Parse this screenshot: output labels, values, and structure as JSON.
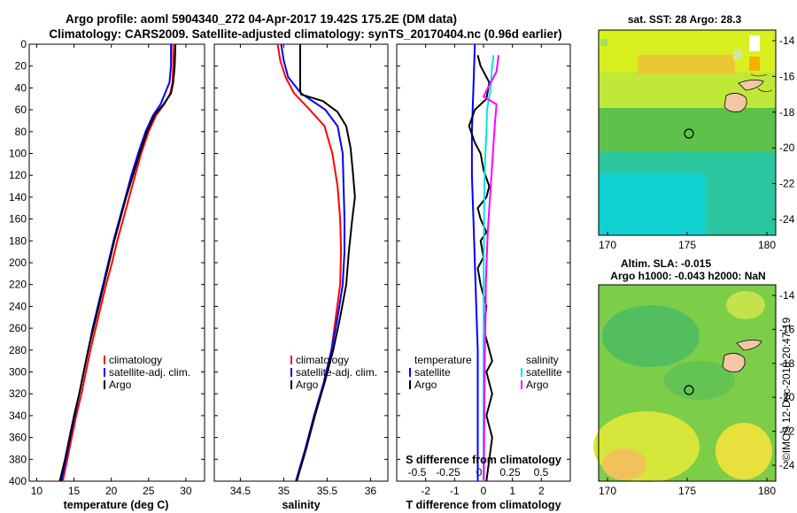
{
  "titles": {
    "line1": "Argo profile: aoml 5904340_272 04-Apr-2017 19.42S 175.2E (DM data)",
    "line2": "Climatology: CARS2009. Satellite-adjusted climatology: synTS_20170404.nc (0.96d earlier)"
  },
  "colors": {
    "climatology": "#ff0000",
    "satellite": "#0000ff",
    "argo": "#000000",
    "sat_s": "#00e5e5",
    "argo_s": "#ff00ff"
  },
  "depth_axis": {
    "ticks": [
      "0",
      "20",
      "40",
      "60",
      "80",
      "100",
      "120",
      "140",
      "160",
      "180",
      "200",
      "220",
      "240",
      "260",
      "280",
      "300",
      "320",
      "340",
      "360",
      "380",
      "400"
    ]
  },
  "chart_data": [
    {
      "type": "line",
      "title": "",
      "xlabel": "temperature (deg C)",
      "ylabel": "",
      "xlim": [
        9,
        32.5
      ],
      "ylim": [
        400,
        0
      ],
      "xticks": [
        "10",
        "15",
        "20",
        "25",
        "30"
      ],
      "legend": [
        "climatology",
        "satellite-adj. clim.",
        "Argo"
      ],
      "series": [
        {
          "name": "climatology",
          "color": "#ff0000",
          "points": [
            [
              28.3,
              0
            ],
            [
              28.3,
              20
            ],
            [
              28.2,
              35
            ],
            [
              27.9,
              45
            ],
            [
              27.1,
              55
            ],
            [
              26.0,
              65
            ],
            [
              25.0,
              80
            ],
            [
              24.0,
              100
            ],
            [
              23.2,
              120
            ],
            [
              22.4,
              140
            ],
            [
              21.6,
              160
            ],
            [
              20.8,
              180
            ],
            [
              20.1,
              200
            ],
            [
              19.3,
              220
            ],
            [
              18.6,
              240
            ],
            [
              17.9,
              260
            ],
            [
              17.2,
              280
            ],
            [
              16.6,
              300
            ],
            [
              16.0,
              320
            ],
            [
              15.3,
              340
            ],
            [
              14.7,
              360
            ],
            [
              14.1,
              380
            ],
            [
              13.5,
              400
            ]
          ]
        },
        {
          "name": "satellite-adj. clim.",
          "color": "#0000ff",
          "points": [
            [
              28.0,
              0
            ],
            [
              28.0,
              20
            ],
            [
              27.8,
              35
            ],
            [
              27.2,
              45
            ],
            [
              26.6,
              55
            ],
            [
              25.6,
              65
            ],
            [
              24.6,
              80
            ],
            [
              23.6,
              100
            ],
            [
              22.7,
              120
            ],
            [
              21.9,
              140
            ],
            [
              21.1,
              160
            ],
            [
              20.3,
              180
            ],
            [
              19.6,
              200
            ],
            [
              18.9,
              220
            ],
            [
              18.2,
              240
            ],
            [
              17.5,
              260
            ],
            [
              16.9,
              280
            ],
            [
              16.3,
              300
            ],
            [
              15.7,
              320
            ],
            [
              15.1,
              340
            ],
            [
              14.5,
              360
            ],
            [
              13.9,
              380
            ],
            [
              13.3,
              400
            ]
          ]
        },
        {
          "name": "Argo",
          "color": "#000000",
          "points": [
            [
              28.6,
              0
            ],
            [
              28.5,
              20
            ],
            [
              28.3,
              35
            ],
            [
              28.0,
              45
            ],
            [
              27.0,
              55
            ],
            [
              25.8,
              65
            ],
            [
              24.8,
              80
            ],
            [
              23.8,
              100
            ],
            [
              22.9,
              120
            ],
            [
              22.0,
              140
            ],
            [
              21.2,
              160
            ],
            [
              20.4,
              180
            ],
            [
              19.7,
              200
            ],
            [
              19.0,
              220
            ],
            [
              18.3,
              240
            ],
            [
              17.6,
              260
            ],
            [
              16.9,
              280
            ],
            [
              16.3,
              300
            ],
            [
              15.7,
              320
            ],
            [
              15.0,
              340
            ],
            [
              14.4,
              360
            ],
            [
              13.8,
              380
            ],
            [
              13.1,
              400
            ]
          ]
        }
      ]
    },
    {
      "type": "line",
      "title": "",
      "xlabel": "salinity",
      "ylabel": "",
      "xlim": [
        34.2,
        36.2
      ],
      "ylim": [
        400,
        0
      ],
      "xticks": [
        "34.5",
        "35",
        "35.5",
        "36"
      ],
      "legend": [
        "climatology",
        "satellite-adj. clim.",
        "Argo"
      ],
      "series": [
        {
          "name": "climatology",
          "color": "#ff0000",
          "points": [
            [
              34.93,
              0
            ],
            [
              34.96,
              15
            ],
            [
              35.02,
              30
            ],
            [
              35.12,
              45
            ],
            [
              35.3,
              60
            ],
            [
              35.47,
              75
            ],
            [
              35.56,
              100
            ],
            [
              35.62,
              130
            ],
            [
              35.65,
              160
            ],
            [
              35.66,
              190
            ],
            [
              35.65,
              220
            ],
            [
              35.6,
              250
            ],
            [
              35.55,
              280
            ],
            [
              35.46,
              310
            ],
            [
              35.35,
              340
            ],
            [
              35.25,
              370
            ],
            [
              35.15,
              400
            ]
          ]
        },
        {
          "name": "satellite-adj. clim.",
          "color": "#0000ff",
          "points": [
            [
              34.97,
              0
            ],
            [
              35.0,
              15
            ],
            [
              35.05,
              30
            ],
            [
              35.2,
              45
            ],
            [
              35.48,
              60
            ],
            [
              35.62,
              75
            ],
            [
              35.68,
              100
            ],
            [
              35.69,
              130
            ],
            [
              35.7,
              160
            ],
            [
              35.7,
              190
            ],
            [
              35.68,
              220
            ],
            [
              35.62,
              250
            ],
            [
              35.55,
              280
            ],
            [
              35.46,
              310
            ],
            [
              35.35,
              340
            ],
            [
              35.25,
              370
            ],
            [
              35.14,
              400
            ]
          ]
        },
        {
          "name": "Argo",
          "color": "#000000",
          "points": [
            [
              35.19,
              0
            ],
            [
              35.19,
              30
            ],
            [
              35.19,
              42
            ],
            [
              35.2,
              46
            ],
            [
              35.45,
              52
            ],
            [
              35.62,
              62
            ],
            [
              35.72,
              75
            ],
            [
              35.77,
              95
            ],
            [
              35.8,
              120
            ],
            [
              35.82,
              140
            ],
            [
              35.79,
              160
            ],
            [
              35.75,
              190
            ],
            [
              35.72,
              220
            ],
            [
              35.65,
              250
            ],
            [
              35.57,
              280
            ],
            [
              35.47,
              310
            ],
            [
              35.36,
              340
            ],
            [
              35.26,
              370
            ],
            [
              35.15,
              400
            ]
          ]
        }
      ]
    },
    {
      "type": "line",
      "title": "",
      "xlabel": "T difference from climatology",
      "xlabel2": "S difference from climatology",
      "ylabel": "",
      "xlim": [
        -3,
        3
      ],
      "ylim": [
        400,
        0
      ],
      "xticks": [
        "-2",
        "-1",
        "0",
        "1",
        "2"
      ],
      "xticks2": [
        "-0.5",
        "-0.25",
        "0",
        "0.25",
        "0.5"
      ],
      "legend_left_title": "temperature",
      "legend_right_title": "salinity",
      "legend_left": [
        "satellite",
        "Argo"
      ],
      "legend_right": [
        "satellite",
        "Argo"
      ],
      "series": [
        {
          "name": "temperature satellite",
          "color": "#0000ff",
          "points": [
            [
              -0.3,
              0
            ],
            [
              -0.35,
              40
            ],
            [
              -0.4,
              80
            ],
            [
              -0.4,
              120
            ],
            [
              -0.35,
              160
            ],
            [
              -0.3,
              200
            ],
            [
              -0.25,
              240
            ],
            [
              -0.2,
              280
            ],
            [
              -0.2,
              320
            ],
            [
              -0.2,
              360
            ],
            [
              -0.2,
              400
            ]
          ]
        },
        {
          "name": "temperature Argo",
          "color": "#000000",
          "points": [
            [
              -0.2,
              10
            ],
            [
              -0.1,
              20
            ],
            [
              0.2,
              35
            ],
            [
              0.1,
              50
            ],
            [
              -0.3,
              60
            ],
            [
              -0.5,
              75
            ],
            [
              -0.3,
              90
            ],
            [
              -0.1,
              100
            ],
            [
              0.0,
              115
            ],
            [
              0.2,
              130
            ],
            [
              0.1,
              140
            ],
            [
              -0.2,
              150
            ],
            [
              -0.1,
              160
            ],
            [
              0.1,
              172
            ],
            [
              -0.1,
              180
            ],
            [
              0.0,
              195
            ],
            [
              -0.2,
              205
            ],
            [
              -0.1,
              220
            ],
            [
              0.1,
              240
            ],
            [
              0.0,
              260
            ],
            [
              0.2,
              280
            ],
            [
              0.3,
              290
            ],
            [
              0.1,
              300
            ],
            [
              0.2,
              310
            ],
            [
              0.3,
              320
            ],
            [
              0.1,
              340
            ],
            [
              0.3,
              360
            ],
            [
              0.2,
              380
            ],
            [
              0.1,
              400
            ]
          ]
        },
        {
          "name": "salinity satellite",
          "color": "#00e5e5",
          "points": [
            [
              0.35,
              10
            ],
            [
              0.28,
              25
            ],
            [
              0.25,
              40
            ],
            [
              0.12,
              60
            ],
            [
              0.1,
              80
            ],
            [
              0.05,
              110
            ],
            [
              0.02,
              150
            ],
            [
              0.01,
              200
            ],
            [
              0.0,
              250
            ],
            [
              0.0,
              300
            ],
            [
              0.0,
              350
            ],
            [
              0.0,
              400
            ]
          ]
        },
        {
          "name": "salinity Argo",
          "color": "#ff00ff",
          "points": [
            [
              0.52,
              10
            ],
            [
              0.45,
              25
            ],
            [
              0.15,
              40
            ],
            [
              0.0,
              48
            ],
            [
              0.45,
              55
            ],
            [
              0.4,
              70
            ],
            [
              0.35,
              90
            ],
            [
              0.3,
              110
            ],
            [
              0.25,
              130
            ],
            [
              0.2,
              150
            ],
            [
              0.15,
              170
            ],
            [
              0.12,
              190
            ],
            [
              0.08,
              220
            ],
            [
              0.07,
              250
            ],
            [
              0.05,
              280
            ],
            [
              0.04,
              300
            ],
            [
              0.03,
              330
            ],
            [
              0.02,
              360
            ],
            [
              0.01,
              400
            ]
          ]
        }
      ]
    }
  ],
  "map_top": {
    "title": "sat. SST: 28 Argo: 28.3",
    "xticks": [
      "170",
      "175",
      "180"
    ],
    "yticks": [
      "-14",
      "-16",
      "-18",
      "-20",
      "-22",
      "-24"
    ]
  },
  "map_bottom": {
    "title1": "Altim. SLA: -0.015",
    "title2": "Argo h1000: -0.043 h2000: NaN",
    "xticks": [
      "170",
      "175",
      "180"
    ],
    "yticks": [
      "-14",
      "-16",
      "-18",
      "-20",
      "-22",
      "-24"
    ]
  },
  "credit": "©IMOS 12-Dec-2018 20:47:19"
}
